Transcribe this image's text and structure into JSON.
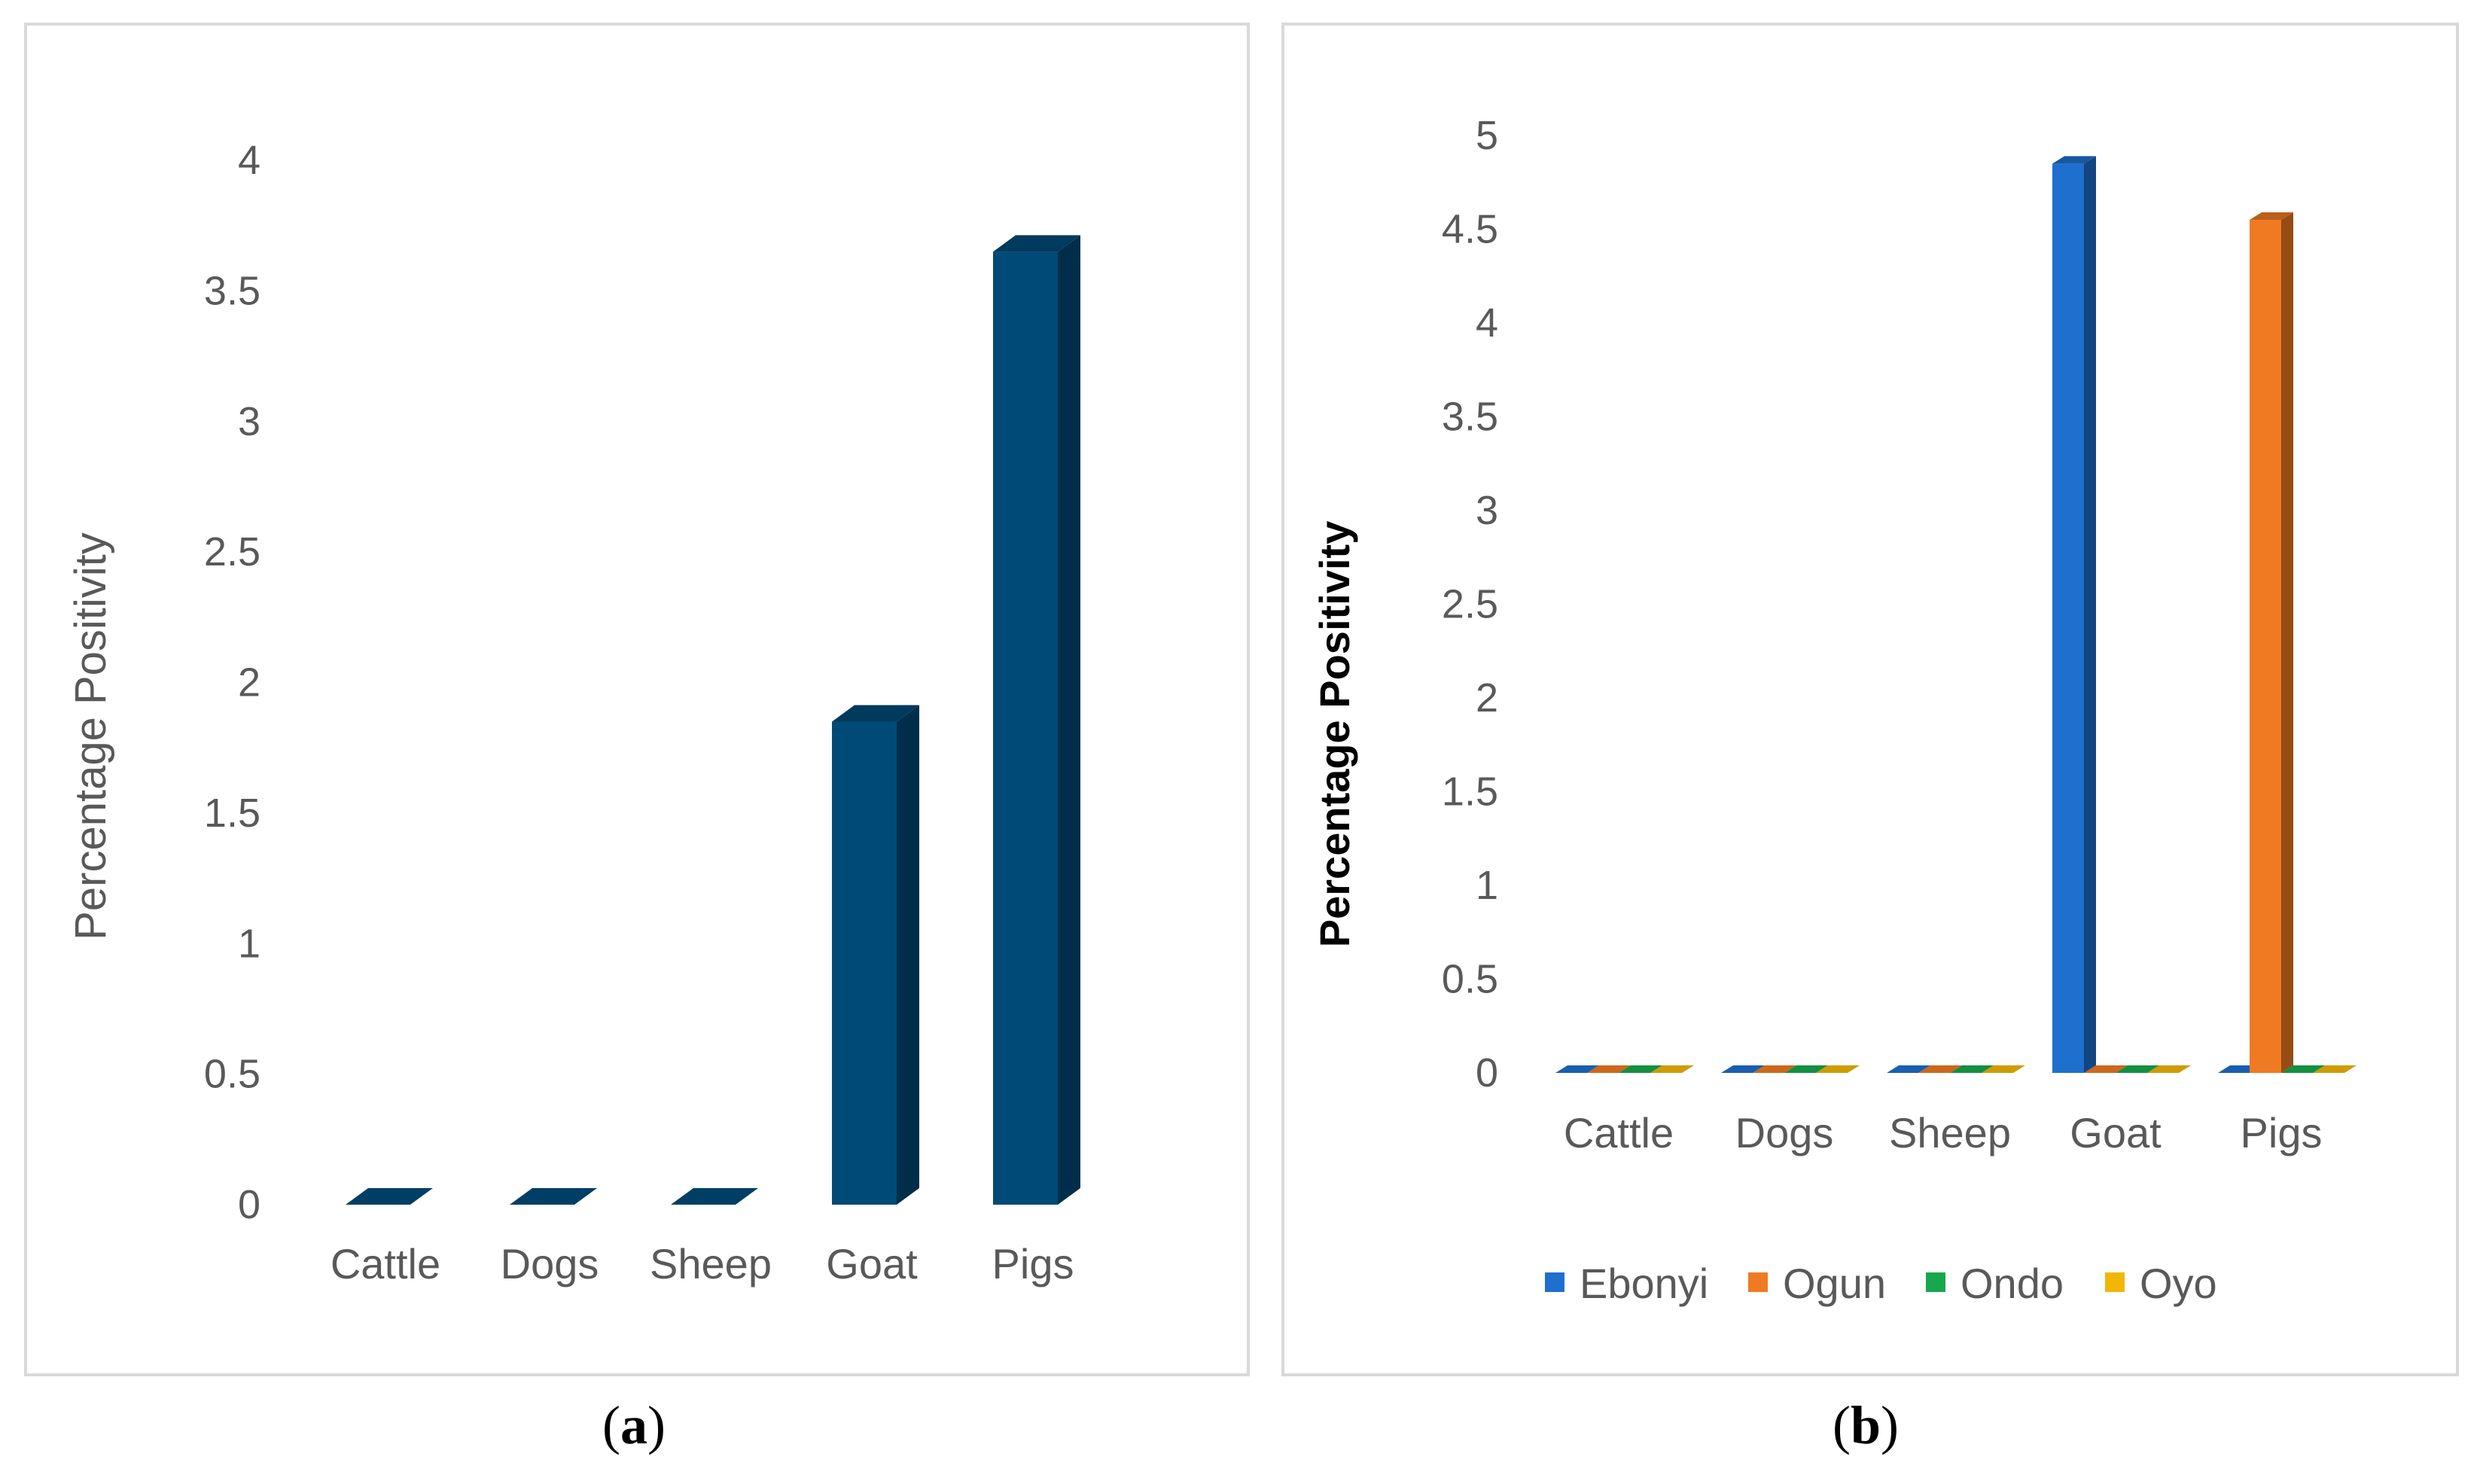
{
  "chart_data": [
    {
      "id": "a",
      "type": "bar",
      "panel_label": "a",
      "ylabel": "Percentage Positivity",
      "ylim": [
        0,
        4
      ],
      "yticks": [
        "0",
        "0.5",
        "1",
        "1.5",
        "2",
        "2.5",
        "3",
        "3.5",
        "4"
      ],
      "categories": [
        "Cattle",
        "Dogs",
        "Sheep",
        "Goat",
        "Pigs"
      ],
      "series": [
        {
          "name": "Percentage Positivity",
          "color": "#004a77",
          "values": [
            0,
            0,
            0,
            1.85,
            3.65
          ]
        }
      ],
      "legend": "none"
    },
    {
      "id": "b",
      "type": "bar",
      "panel_label": "b",
      "ylabel": "Percentage Positivity",
      "ylim": [
        0,
        5
      ],
      "yticks": [
        "0",
        "0.5",
        "1",
        "1.5",
        "2",
        "2.5",
        "3",
        "3.5",
        "4",
        "4.5",
        "5"
      ],
      "categories": [
        "Cattle",
        "Dogs",
        "Sheep",
        "Goat",
        "Pigs"
      ],
      "series": [
        {
          "name": "Ebonyi",
          "color": "#1f6fce",
          "values": [
            0,
            0,
            0,
            4.85,
            0
          ]
        },
        {
          "name": "Ogun",
          "color": "#f07a22",
          "values": [
            0,
            0,
            0,
            0,
            4.55
          ]
        },
        {
          "name": "Ondo",
          "color": "#17a84d",
          "values": [
            0,
            0,
            0,
            0,
            0
          ]
        },
        {
          "name": "Oyo",
          "color": "#f2b705",
          "values": [
            0,
            0,
            0,
            0,
            0
          ]
        }
      ],
      "legend": "bottom"
    }
  ]
}
